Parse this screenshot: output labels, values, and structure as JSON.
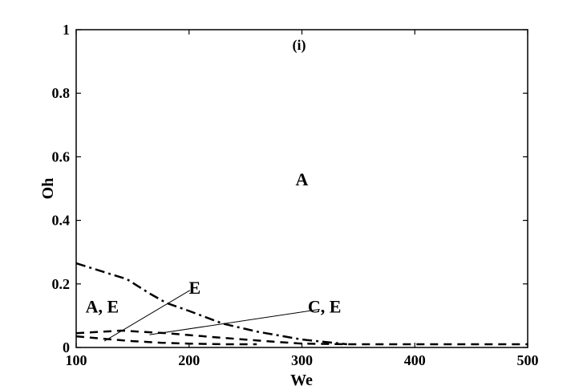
{
  "chart_data": {
    "type": "line",
    "panel_label": "(i)",
    "xlabel": "We",
    "ylabel": "Oh",
    "xlim": [
      100,
      500
    ],
    "ylim": [
      0,
      1
    ],
    "xticks": [
      100,
      200,
      300,
      400,
      500
    ],
    "yticks": [
      0,
      0.2,
      0.4,
      0.6,
      0.8,
      1
    ],
    "xtick_labels": [
      "100",
      "200",
      "300",
      "400",
      "500"
    ],
    "ytick_labels": [
      "0",
      "0.2",
      "0.4",
      "0.6",
      "0.8",
      "1"
    ],
    "grid": false,
    "series": [
      {
        "style": "dash-dot",
        "color": "#000000",
        "x": [
          100,
          145,
          165,
          180,
          200,
          230,
          260,
          300,
          340
        ],
        "y": [
          0.265,
          0.215,
          0.17,
          0.14,
          0.115,
          0.075,
          0.05,
          0.025,
          0.01
        ]
      },
      {
        "style": "dashed",
        "color": "#000000",
        "x": [
          100,
          140,
          180,
          220,
          260,
          300,
          340,
          400,
          500
        ],
        "y": [
          0.045,
          0.053,
          0.045,
          0.033,
          0.022,
          0.012,
          0.01,
          0.01,
          0.01
        ]
      },
      {
        "style": "dashed",
        "color": "#000000",
        "x": [
          100,
          125,
          150,
          175,
          200,
          230,
          260
        ],
        "y": [
          0.035,
          0.027,
          0.02,
          0.015,
          0.012,
          0.01,
          0.01
        ]
      }
    ],
    "annotations": [
      {
        "text": "A",
        "x": 300,
        "y": 0.53
      },
      {
        "text": "A, E",
        "x": 123,
        "y": 0.13
      },
      {
        "text": "E",
        "x": 205,
        "y": 0.19,
        "arrow_to": [
          125,
          0.02
        ]
      },
      {
        "text": "C, E",
        "x": 320,
        "y": 0.13,
        "arrow_to": [
          165,
          0.04
        ]
      }
    ]
  }
}
